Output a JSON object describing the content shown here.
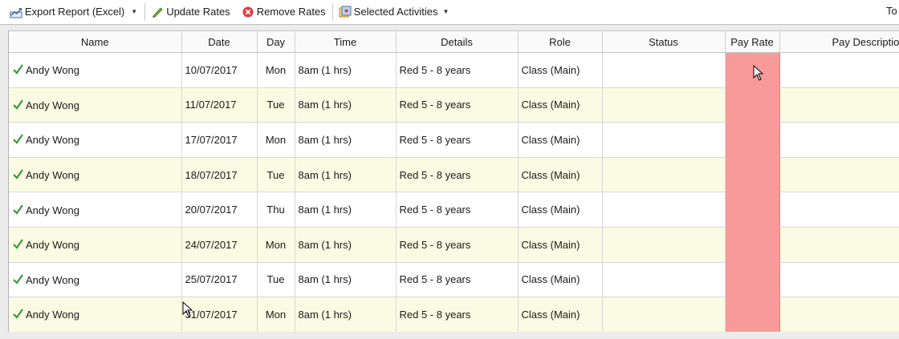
{
  "toolbar": {
    "export_label": "Export Report (Excel)",
    "update_label": "Update Rates",
    "remove_label": "Remove Rates",
    "selected_label": "Selected Activities",
    "right_text": "To"
  },
  "colors": {
    "pay_rate_cell": "#f99a9a",
    "alt_row": "#fbfbe3",
    "check": "#3a9a3a",
    "remove_icon": "#e03c3c"
  },
  "columns": {
    "name": "Name",
    "date": "Date",
    "day": "Day",
    "time": "Time",
    "details": "Details",
    "role": "Role",
    "status": "Status",
    "pay_rate": "Pay Rate",
    "pay_description": "Pay Description"
  },
  "rows": [
    {
      "name": "Andy Wong",
      "date": "10/07/2017",
      "day": "Mon",
      "time": "8am (1 hrs)",
      "details": "Red 5 - 8 years",
      "role": "Class (Main)",
      "status": "",
      "pay_rate": "",
      "pay_description": ""
    },
    {
      "name": "Andy Wong",
      "date": "11/07/2017",
      "day": "Tue",
      "time": "8am (1 hrs)",
      "details": "Red 5 - 8 years",
      "role": "Class (Main)",
      "status": "",
      "pay_rate": "",
      "pay_description": ""
    },
    {
      "name": "Andy Wong",
      "date": "17/07/2017",
      "day": "Mon",
      "time": "8am (1 hrs)",
      "details": "Red 5 - 8 years",
      "role": "Class (Main)",
      "status": "",
      "pay_rate": "",
      "pay_description": ""
    },
    {
      "name": "Andy Wong",
      "date": "18/07/2017",
      "day": "Tue",
      "time": "8am (1 hrs)",
      "details": "Red 5 - 8 years",
      "role": "Class (Main)",
      "status": "",
      "pay_rate": "",
      "pay_description": ""
    },
    {
      "name": "Andy Wong",
      "date": "20/07/2017",
      "day": "Thu",
      "time": "8am (1 hrs)",
      "details": "Red 5 - 8 years",
      "role": "Class (Main)",
      "status": "",
      "pay_rate": "",
      "pay_description": ""
    },
    {
      "name": "Andy Wong",
      "date": "24/07/2017",
      "day": "Mon",
      "time": "8am (1 hrs)",
      "details": "Red 5 - 8 years",
      "role": "Class (Main)",
      "status": "",
      "pay_rate": "",
      "pay_description": ""
    },
    {
      "name": "Andy Wong",
      "date": "25/07/2017",
      "day": "Tue",
      "time": "8am (1 hrs)",
      "details": "Red 5 - 8 years",
      "role": "Class (Main)",
      "status": "",
      "pay_rate": "",
      "pay_description": ""
    },
    {
      "name": "Andy Wong",
      "date": "31/07/2017",
      "day": "Mon",
      "time": "8am (1 hrs)",
      "details": "Red 5 - 8 years",
      "role": "Class (Main)",
      "status": "",
      "pay_rate": "",
      "pay_description": ""
    }
  ]
}
